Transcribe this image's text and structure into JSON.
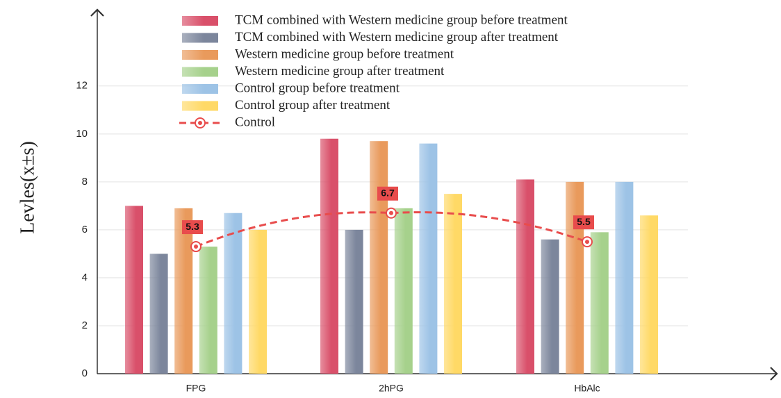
{
  "chart_data": {
    "type": "bar",
    "y_label": "Levles(x±s)",
    "categories": [
      "FPG",
      "2hPG",
      "HbAlc"
    ],
    "ylim": [
      0,
      13.5
    ],
    "yticks": [
      0,
      2,
      4,
      6,
      8,
      10,
      12
    ],
    "grid": true,
    "series": [
      {
        "name": "TCM combined with Western medicine group before treatment",
        "color": "#d9506a",
        "values": [
          7.0,
          9.8,
          8.1
        ]
      },
      {
        "name": "TCM combined with Western medicine group after treatment",
        "color": "#7c869c",
        "values": [
          5.0,
          6.0,
          5.6
        ]
      },
      {
        "name": "Western medicine group before treatment",
        "color": "#e99a5c",
        "values": [
          6.9,
          9.7,
          8.0
        ]
      },
      {
        "name": "Western medicine group after treatment",
        "color": "#a6d18c",
        "values": [
          5.3,
          6.9,
          5.9
        ]
      },
      {
        "name": "Control group before treatment",
        "color": "#9dc3e6",
        "values": [
          6.7,
          9.6,
          8.0
        ]
      },
      {
        "name": "Control group after treatment",
        "color": "#ffd966",
        "values": [
          6.0,
          7.5,
          6.6
        ]
      },
      {
        "name": "Control",
        "type": "line",
        "color": "#e84c4c",
        "values": [
          5.3,
          6.7,
          5.5
        ]
      }
    ]
  }
}
